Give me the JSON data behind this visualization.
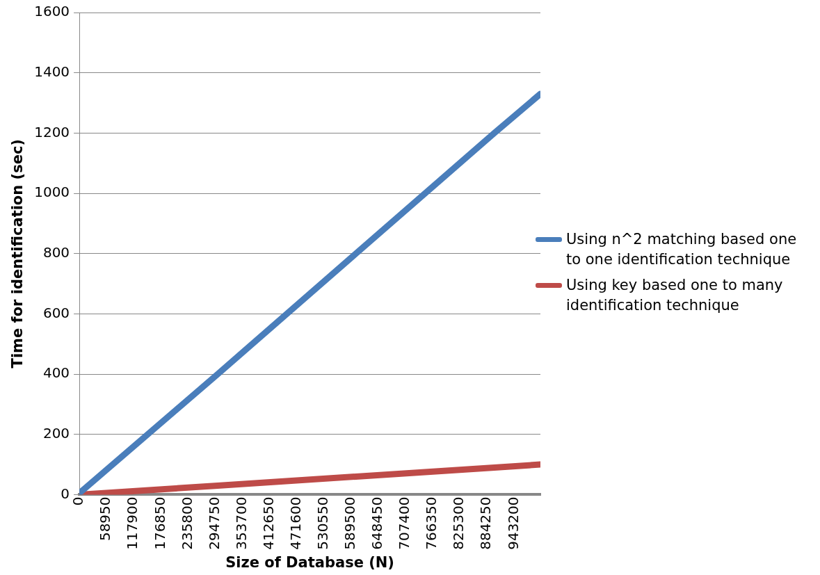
{
  "chart_data": {
    "type": "line",
    "xlabel": "Size of Database (N)",
    "ylabel": "Time for identification (sec)",
    "x": [
      0,
      300000,
      600000,
      900000,
      1000000
    ],
    "series": [
      {
        "name": "Using n^2 matching based one to one identification technique",
        "color": "#4a7ebb",
        "values": [
          5,
          400,
          800,
          1200,
          1330
        ]
      },
      {
        "name": "Using key based one to many identification technique",
        "color": "#be4b48",
        "values": [
          0,
          30,
          60,
          90,
          100
        ]
      }
    ],
    "xlim": [
      0,
      1000000
    ],
    "xticks": [
      0,
      58950,
      117900,
      176850,
      235800,
      294750,
      353700,
      412650,
      471600,
      530550,
      589500,
      648450,
      707400,
      766350,
      825300,
      884250,
      943200
    ],
    "ylim": [
      0,
      1600
    ],
    "yticks": [
      0,
      200,
      400,
      600,
      800,
      1000,
      1200,
      1400,
      1600
    ],
    "grid": "y",
    "legend": "right",
    "marker": "none",
    "line_style": "solid"
  }
}
